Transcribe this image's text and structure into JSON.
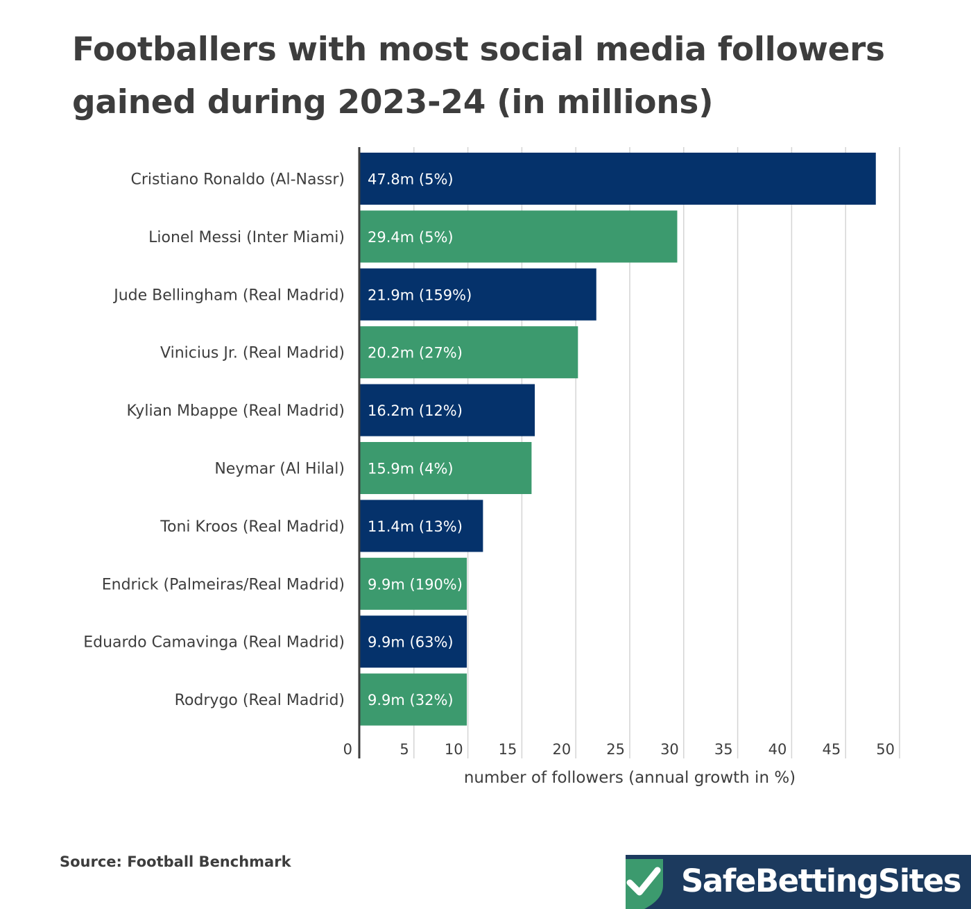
{
  "title": "Footballers with most social media followers gained during 2023-24 (in millions)",
  "source": "Source: Football Benchmark",
  "logo": {
    "text": "SafeBettingSites",
    "icon": "shield-check-icon"
  },
  "colors": {
    "navy": "#05326b",
    "green": "#3c9a6e",
    "grid": "#d4d4d4",
    "text": "#3d3d3d"
  },
  "chart_data": {
    "type": "bar",
    "orientation": "horizontal",
    "xlabel": "number of followers (annual growth in %)",
    "ylabel": "",
    "xlim": [
      0,
      50
    ],
    "xticks": [
      0,
      5,
      10,
      15,
      20,
      25,
      30,
      35,
      40,
      45,
      50
    ],
    "grid": "vertical",
    "categories": [
      "Cristiano Ronaldo (Al-Nassr)",
      "Lionel Messi (Inter Miami)",
      "Jude Bellingham (Real Madrid)",
      "Vinicius Jr. (Real Madrid)",
      "Kylian Mbappe (Real Madrid)",
      "Neymar (Al Hilal)",
      "Toni Kroos (Real Madrid)",
      "Endrick (Palmeiras/Real Madrid)",
      "Eduardo Camavinga (Real Madrid)",
      "Rodrygo (Real Madrid)"
    ],
    "values": [
      47.8,
      29.4,
      21.9,
      20.2,
      16.2,
      15.9,
      11.4,
      9.9,
      9.9,
      9.9
    ],
    "data_labels": [
      "47.8m (5%)",
      "29.4m (5%)",
      "21.9m (159%)",
      "20.2m (27%)",
      "16.2m (12%)",
      "15.9m (4%)",
      "11.4m (13%)",
      "9.9m (190%)",
      "9.9m (63%)",
      "9.9m (32%)"
    ],
    "bar_colors": [
      "#05326b",
      "#3c9a6e",
      "#05326b",
      "#3c9a6e",
      "#05326b",
      "#3c9a6e",
      "#05326b",
      "#3c9a6e",
      "#05326b",
      "#3c9a6e"
    ]
  }
}
